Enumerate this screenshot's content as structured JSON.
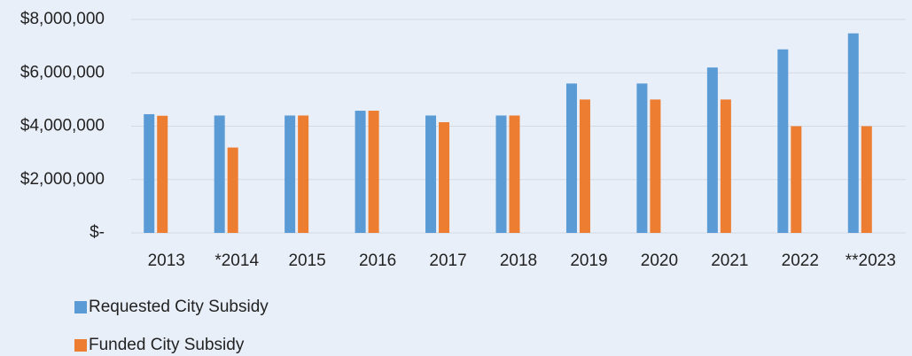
{
  "chart_data": {
    "type": "bar",
    "categories": [
      "2013",
      "*2014",
      "2015",
      "2016",
      "2017",
      "2018",
      "2019",
      "2020",
      "2021",
      "2022",
      "**2023"
    ],
    "series": [
      {
        "name": "Requested City Subsidy",
        "color": "#5b9bd5",
        "values": [
          4450000,
          4400000,
          4400000,
          4580000,
          4400000,
          4400000,
          5600000,
          5600000,
          6200000,
          6880000,
          7480000
        ]
      },
      {
        "name": "Funded City Subsidy",
        "color": "#ed7d31",
        "values": [
          4390000,
          3200000,
          4400000,
          4580000,
          4150000,
          4400000,
          5000000,
          5000000,
          5000000,
          4000000,
          4000000
        ]
      }
    ],
    "ylim": [
      0,
      8000000
    ],
    "yticks": [
      {
        "value": 0,
        "label": "$-"
      },
      {
        "value": 2000000,
        "label": "$2,000,000"
      },
      {
        "value": 4000000,
        "label": "$4,000,000"
      },
      {
        "value": 6000000,
        "label": "$6,000,000"
      },
      {
        "value": 8000000,
        "label": "$8,000,000"
      }
    ],
    "grid": true,
    "legend": "bottom-left"
  }
}
